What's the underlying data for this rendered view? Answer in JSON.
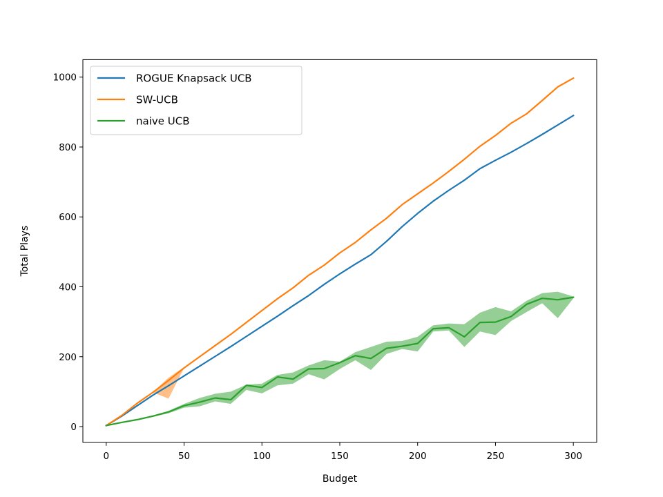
{
  "chart_data": {
    "type": "line",
    "xlabel": "Budget",
    "ylabel": "Total Plays",
    "xlim": [
      -15,
      315
    ],
    "ylim": [
      -45,
      1050
    ],
    "xticks": [
      0,
      50,
      100,
      150,
      200,
      250,
      300
    ],
    "yticks": [
      0,
      200,
      400,
      600,
      800,
      1000
    ],
    "grid": false,
    "legend_position": "top-left",
    "series": [
      {
        "name": "ROGUE Knapsack UCB",
        "color": "#1f77b4",
        "x": [
          0,
          10,
          20,
          30,
          40,
          50,
          60,
          70,
          80,
          90,
          100,
          110,
          120,
          130,
          140,
          150,
          160,
          170,
          180,
          190,
          200,
          210,
          220,
          230,
          240,
          250,
          260,
          270,
          280,
          290,
          300
        ],
        "y": [
          3,
          30,
          60,
          90,
          117,
          145,
          173,
          201,
          229,
          258,
          287,
          316,
          346,
          375,
          407,
          437,
          465,
          492,
          530,
          572,
          610,
          645,
          676,
          705,
          738,
          762,
          785,
          810,
          836,
          863,
          890
        ],
        "lower": null,
        "upper": null
      },
      {
        "name": "SW-UCB",
        "color": "#ff7f0e",
        "x": [
          0,
          10,
          20,
          30,
          40,
          50,
          60,
          70,
          80,
          90,
          100,
          110,
          120,
          130,
          140,
          150,
          160,
          170,
          180,
          190,
          200,
          210,
          220,
          230,
          240,
          250,
          260,
          270,
          280,
          290,
          300
        ],
        "y": [
          3,
          32,
          67,
          98,
          132,
          168,
          200,
          232,
          264,
          298,
          332,
          366,
          397,
          433,
          462,
          497,
          527,
          563,
          596,
          635,
          666,
          697,
          730,
          765,
          802,
          833,
          868,
          895,
          933,
          972,
          997
        ],
        "lower": [
          3,
          32,
          67,
          98,
          80,
          168,
          200,
          232,
          264,
          298,
          332,
          366,
          397,
          433,
          462,
          497,
          527,
          563,
          596,
          635,
          666,
          697,
          730,
          765,
          802,
          833,
          868,
          895,
          933,
          972,
          997
        ],
        "upper": [
          3,
          32,
          67,
          98,
          140,
          170,
          200,
          232,
          264,
          298,
          332,
          366,
          397,
          433,
          462,
          497,
          527,
          563,
          596,
          635,
          666,
          697,
          730,
          765,
          802,
          833,
          868,
          895,
          933,
          972,
          997
        ]
      },
      {
        "name": "naive UCB",
        "color": "#2ca02c",
        "x": [
          0,
          10,
          20,
          30,
          40,
          50,
          60,
          70,
          80,
          90,
          100,
          110,
          120,
          130,
          140,
          150,
          160,
          170,
          180,
          190,
          200,
          210,
          220,
          230,
          240,
          250,
          260,
          270,
          280,
          290,
          300
        ],
        "y": [
          3,
          12,
          20,
          30,
          42,
          60,
          70,
          82,
          77,
          118,
          112,
          142,
          136,
          165,
          166,
          183,
          203,
          195,
          224,
          230,
          238,
          280,
          283,
          257,
          298,
          299,
          315,
          350,
          367,
          363,
          370
        ],
        "lower": [
          3,
          11,
          18,
          28,
          38,
          54,
          58,
          72,
          65,
          105,
          95,
          118,
          123,
          150,
          135,
          165,
          190,
          162,
          208,
          222,
          215,
          272,
          275,
          228,
          272,
          262,
          302,
          328,
          353,
          310,
          367
        ],
        "upper": [
          3,
          13,
          22,
          32,
          45,
          65,
          82,
          94,
          100,
          120,
          123,
          148,
          155,
          175,
          190,
          186,
          213,
          228,
          243,
          245,
          257,
          290,
          295,
          293,
          326,
          342,
          330,
          360,
          382,
          386,
          372
        ]
      }
    ]
  }
}
